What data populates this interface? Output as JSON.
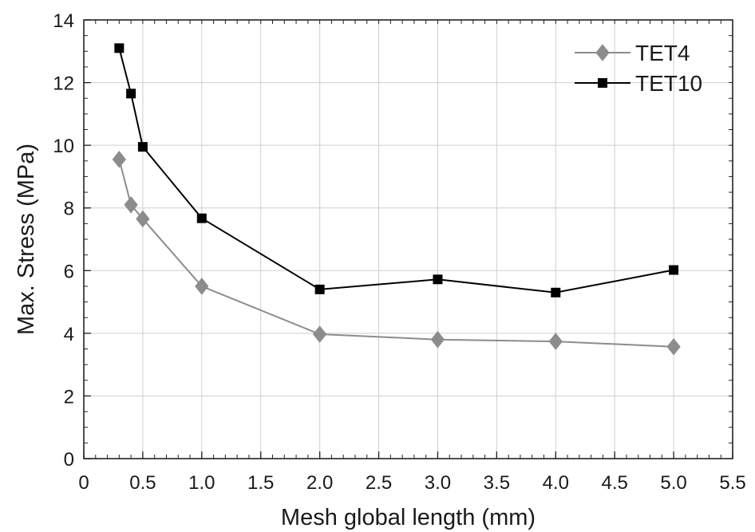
{
  "chart_data": {
    "type": "line",
    "title": "",
    "xlabel": "Mesh global length (mm)",
    "ylabel": "Max. Stress (MPa)",
    "xlim": [
      0,
      5.5
    ],
    "ylim": [
      0,
      14
    ],
    "xticks": [
      0,
      0.5,
      1.0,
      1.5,
      2.0,
      2.5,
      3.0,
      3.5,
      4.0,
      4.5,
      5.0,
      5.5
    ],
    "xtick_labels": [
      "0",
      "0.5",
      "1.0",
      "1.5",
      "2.0",
      "2.5",
      "3.0",
      "3.5",
      "4.0",
      "4.5",
      "5.0",
      "5.5"
    ],
    "yticks": [
      0,
      2,
      4,
      6,
      8,
      10,
      12,
      14
    ],
    "ytick_labels": [
      "0",
      "2",
      "4",
      "6",
      "8",
      "10",
      "12",
      "14"
    ],
    "grid": true,
    "legend_position": "top-right",
    "series": [
      {
        "name": "TET4",
        "color": "#8c8c8c",
        "marker": "diamond",
        "x": [
          0.3,
          0.4,
          0.5,
          1.0,
          2.0,
          3.0,
          4.0,
          5.0
        ],
        "y": [
          9.55,
          8.1,
          7.65,
          5.5,
          3.97,
          3.8,
          3.74,
          3.57
        ]
      },
      {
        "name": "TET10",
        "color": "#000000",
        "marker": "square",
        "x": [
          0.3,
          0.4,
          0.5,
          1.0,
          2.0,
          3.0,
          4.0,
          5.0
        ],
        "y": [
          13.1,
          11.65,
          9.95,
          7.67,
          5.4,
          5.72,
          5.3,
          6.02
        ]
      }
    ]
  }
}
